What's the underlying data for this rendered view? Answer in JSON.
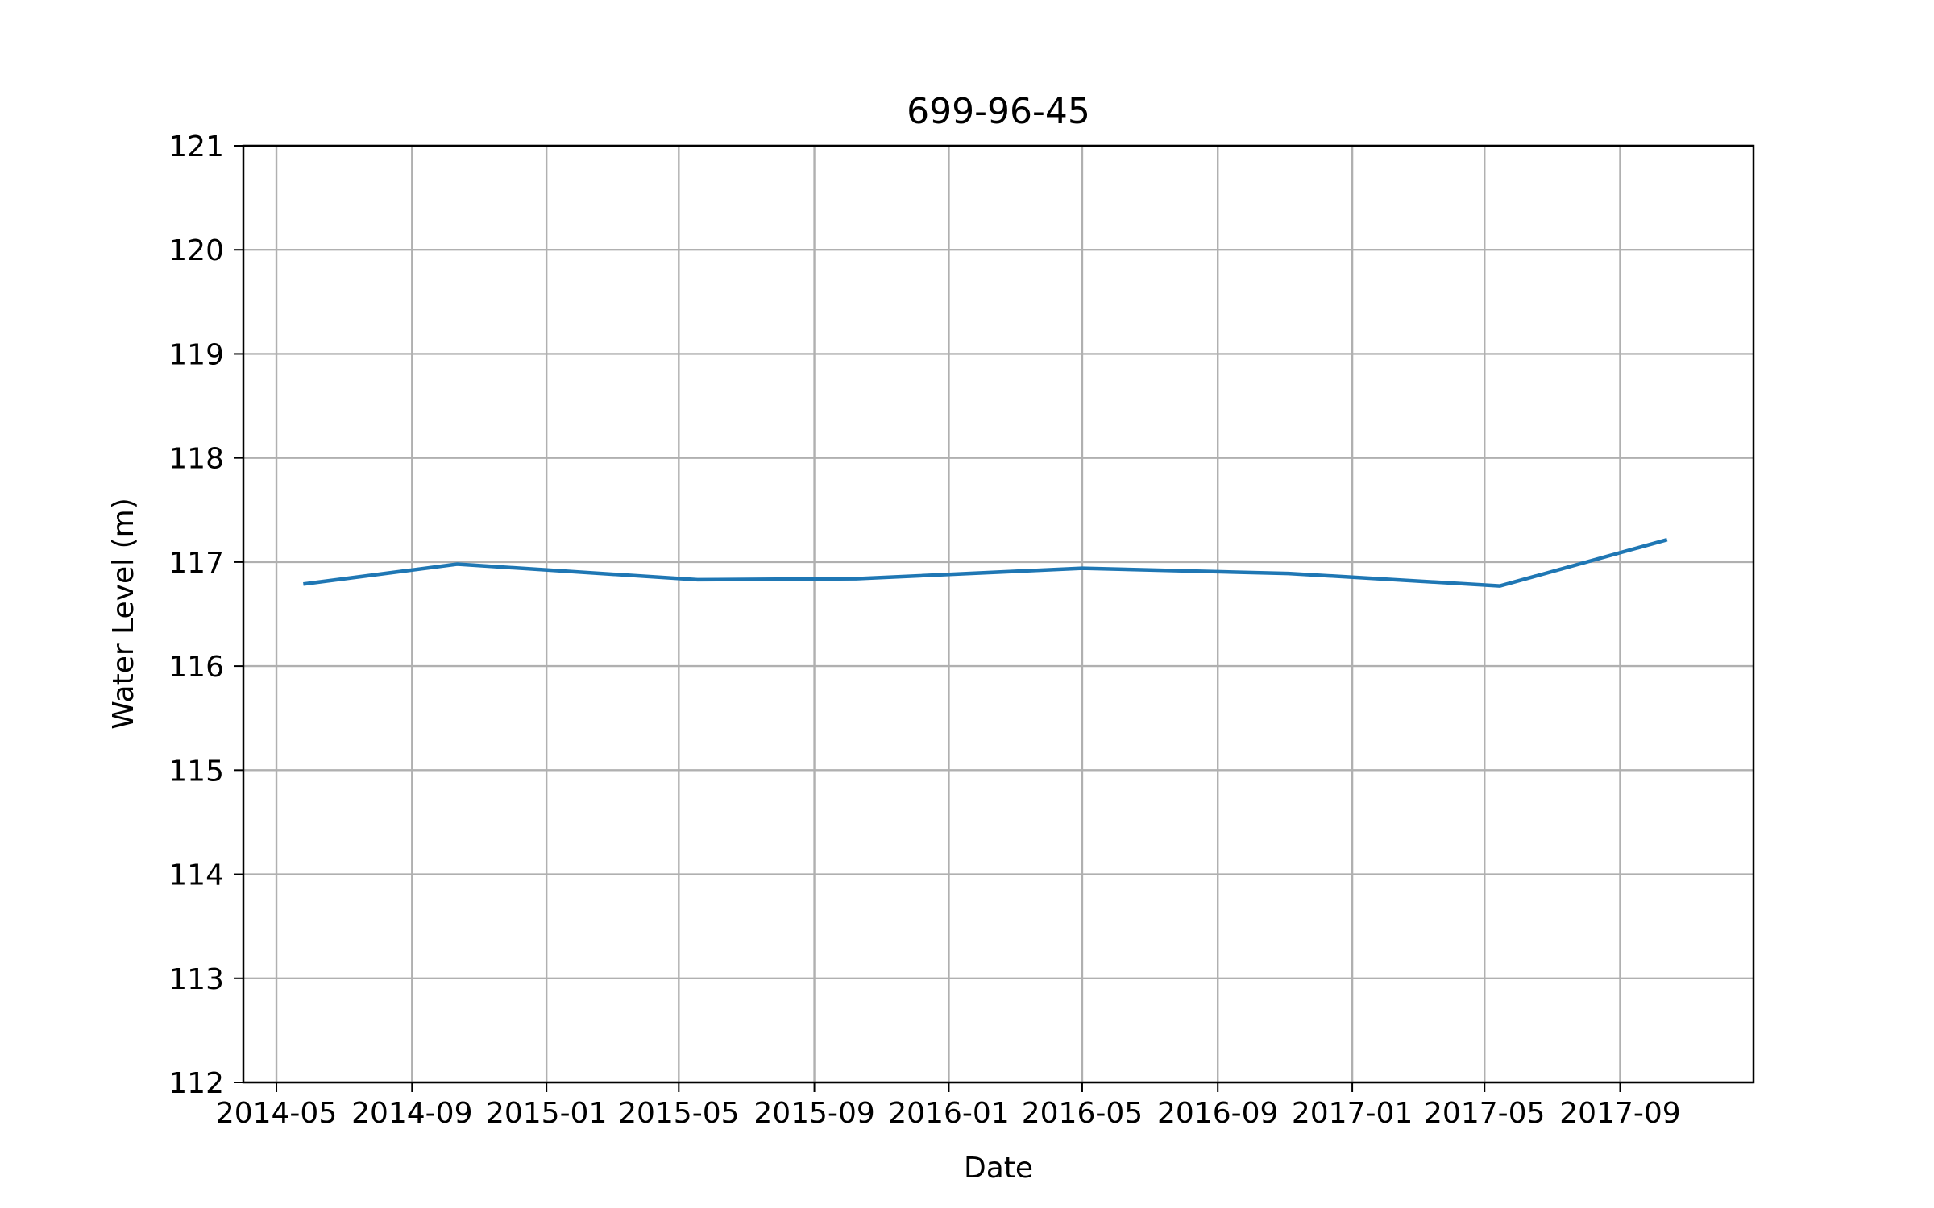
{
  "chart_data": {
    "type": "line",
    "title": "699-96-45",
    "xlabel": "Date",
    "ylabel": "Water Level (m)",
    "x_axis_type": "date",
    "xlim": [
      "2014-04-01",
      "2017-12-31"
    ],
    "ylim": [
      112,
      121
    ],
    "grid": true,
    "x_ticks": [
      {
        "date": "2014-05-01",
        "label": "2014-05"
      },
      {
        "date": "2014-09-01",
        "label": "2014-09"
      },
      {
        "date": "2015-01-01",
        "label": "2015-01"
      },
      {
        "date": "2015-05-01",
        "label": "2015-05"
      },
      {
        "date": "2015-09-01",
        "label": "2015-09"
      },
      {
        "date": "2016-01-01",
        "label": "2016-01"
      },
      {
        "date": "2016-05-01",
        "label": "2016-05"
      },
      {
        "date": "2016-09-01",
        "label": "2016-09"
      },
      {
        "date": "2017-01-01",
        "label": "2017-01"
      },
      {
        "date": "2017-05-01",
        "label": "2017-05"
      },
      {
        "date": "2017-09-01",
        "label": "2017-09"
      }
    ],
    "y_ticks": [
      112,
      113,
      114,
      115,
      116,
      117,
      118,
      119,
      120,
      121
    ],
    "series": [
      {
        "color": "#1f77b4",
        "points": [
          {
            "x": "2014-05-27",
            "y": 116.79
          },
          {
            "x": "2014-10-12",
            "y": 116.98
          },
          {
            "x": "2015-05-18",
            "y": 116.83
          },
          {
            "x": "2015-10-09",
            "y": 116.84
          },
          {
            "x": "2016-05-01",
            "y": 116.94
          },
          {
            "x": "2016-11-04",
            "y": 116.89
          },
          {
            "x": "2017-05-15",
            "y": 116.77
          },
          {
            "x": "2017-10-12",
            "y": 117.21
          }
        ]
      }
    ]
  }
}
